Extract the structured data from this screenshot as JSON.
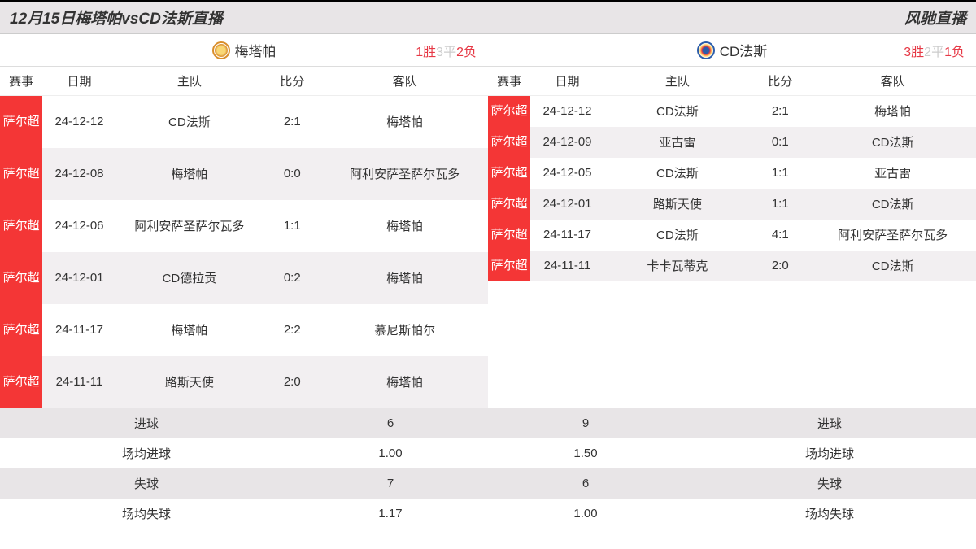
{
  "header": {
    "title": "12月15日梅塔帕vsCD法斯直播",
    "brand": "风驰直播"
  },
  "columns": {
    "event": "赛事",
    "date": "日期",
    "home": "主队",
    "score": "比分",
    "away": "客队"
  },
  "left": {
    "team_name": "梅塔帕",
    "record": {
      "win_n": "1",
      "win_l": "胜",
      "draw_n": "3",
      "draw_l": "平",
      "loss_n": "2",
      "loss_l": "负"
    },
    "matches": [
      {
        "league": "萨尔超",
        "date": "24-12-12",
        "home": "CD法斯",
        "score": "2:1",
        "away": "梅塔帕"
      },
      {
        "league": "萨尔超",
        "date": "24-12-08",
        "home": "梅塔帕",
        "score": "0:0",
        "away": "阿利安萨圣萨尔瓦多"
      },
      {
        "league": "萨尔超",
        "date": "24-12-06",
        "home": "阿利安萨圣萨尔瓦多",
        "score": "1:1",
        "away": "梅塔帕"
      },
      {
        "league": "萨尔超",
        "date": "24-12-01",
        "home": "CD德拉贡",
        "score": "0:2",
        "away": "梅塔帕"
      },
      {
        "league": "萨尔超",
        "date": "24-11-17",
        "home": "梅塔帕",
        "score": "2:2",
        "away": "慕尼斯帕尔"
      },
      {
        "league": "萨尔超",
        "date": "24-11-11",
        "home": "路斯天使",
        "score": "2:0",
        "away": "梅塔帕"
      }
    ]
  },
  "right": {
    "team_name": "CD法斯",
    "record": {
      "win_n": "3",
      "win_l": "胜",
      "draw_n": "2",
      "draw_l": "平",
      "loss_n": "1",
      "loss_l": "负"
    },
    "matches": [
      {
        "league": "萨尔超",
        "date": "24-12-12",
        "home": "CD法斯",
        "score": "2:1",
        "away": "梅塔帕"
      },
      {
        "league": "萨尔超",
        "date": "24-12-09",
        "home": "亚古雷",
        "score": "0:1",
        "away": "CD法斯"
      },
      {
        "league": "萨尔超",
        "date": "24-12-05",
        "home": "CD法斯",
        "score": "1:1",
        "away": "亚古雷"
      },
      {
        "league": "萨尔超",
        "date": "24-12-01",
        "home": "路斯天使",
        "score": "1:1",
        "away": "CD法斯"
      },
      {
        "league": "萨尔超",
        "date": "24-11-17",
        "home": "CD法斯",
        "score": "4:1",
        "away": "阿利安萨圣萨尔瓦多"
      },
      {
        "league": "萨尔超",
        "date": "24-11-11",
        "home": "卡卡瓦蒂克",
        "score": "2:0",
        "away": "CD法斯"
      }
    ]
  },
  "stats": {
    "rows": [
      {
        "label": "进球",
        "left": "6",
        "right": "9"
      },
      {
        "label": "场均进球",
        "left": "1.00",
        "right": "1.50"
      },
      {
        "label": "失球",
        "left": "7",
        "right": "6"
      },
      {
        "label": "场均失球",
        "left": "1.17",
        "right": "1.00"
      }
    ]
  },
  "colors": {
    "accent_red": "#f43636",
    "alt_row": "#f2eff1",
    "stats_alt": "#e8e5e7",
    "text_win": "#e63946",
    "text_draw": "#cccccc"
  }
}
